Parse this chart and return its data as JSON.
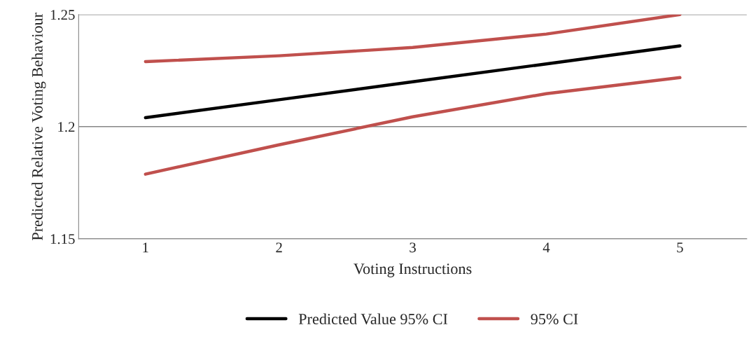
{
  "chart_data": {
    "type": "line",
    "xlabel": "Voting Instructions",
    "ylabel": "Predicted Relative Voting Behaviour",
    "categories": [
      "1",
      "2",
      "3",
      "4",
      "5"
    ],
    "series": [
      {
        "name": "Predicted Value 95% CI",
        "color": "#000000",
        "values": [
          1.204,
          1.212,
          1.22,
          1.228,
          1.236
        ]
      },
      {
        "name": "95% CI",
        "color": "#c0504d",
        "values": [
          1.229,
          1.2316,
          1.2353,
          1.2413,
          1.25
        ]
      },
      {
        "color": "#c0504d",
        "values": [
          1.1788,
          1.1919,
          1.2044,
          1.2147,
          1.2219
        ]
      }
    ],
    "ylim": [
      1.15,
      1.25
    ],
    "yticks": [
      1.15,
      1.2,
      1.25
    ],
    "grid": "y",
    "legend": "bottom",
    "marker": "none",
    "line_style": "solid"
  }
}
